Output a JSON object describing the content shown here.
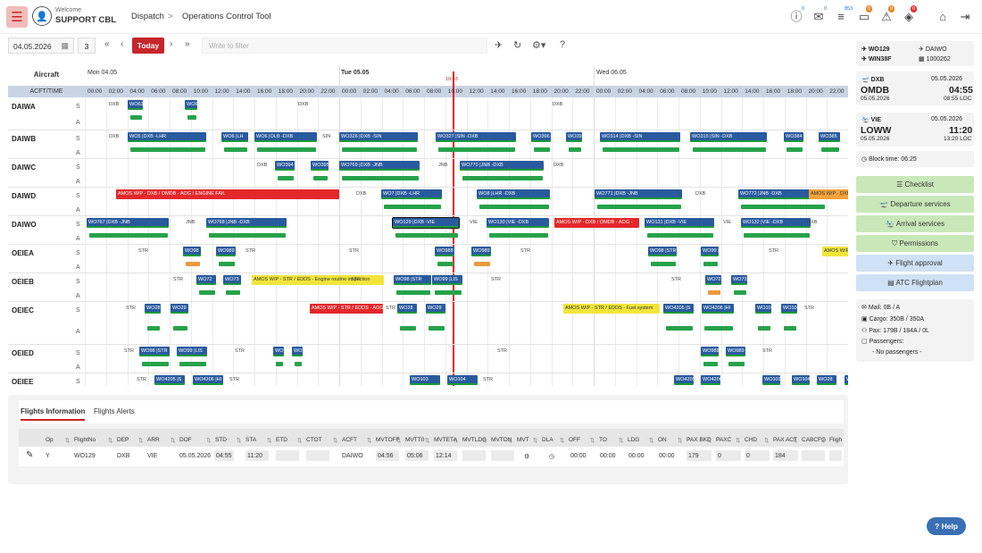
{
  "header": {
    "welcome": "Welcome",
    "user": "SUPPORT CBL",
    "crumb1": "Dispatch",
    "sep": ">",
    "crumb2": "Operations Control Tool",
    "badges": [
      "0",
      "0",
      "853",
      "0",
      "0",
      "0"
    ]
  },
  "toolbar": {
    "date": "04.05.2026",
    "days": "3",
    "today": "Today",
    "filter_placeholder": "Write to filter"
  },
  "gantt": {
    "aircraft_label": "Aircraft",
    "acft_time": "ACFT/TIME",
    "days": [
      "Mon 04.05",
      "Tue 05.05",
      "Wed 06.05"
    ],
    "hours": [
      "00:00",
      "02:00",
      "04:00",
      "06:00",
      "08:00",
      "10:00",
      "12:00",
      "14:00",
      "16:00",
      "18:00",
      "20:00",
      "22:00",
      "00:00",
      "02:00",
      "04:00",
      "06:00",
      "08:00",
      "10:00",
      "12:00",
      "14:00",
      "16:00",
      "18:00",
      "20:00",
      "22:00",
      "00:00",
      "02:00",
      "04:00",
      "06:00",
      "08:00",
      "10:00",
      "12:00",
      "14:00",
      "16:00",
      "18:00",
      "20:00",
      "22:00"
    ],
    "now": "10:43",
    "aircraft": [
      "DAIWA",
      "DAIWB",
      "DAIWC",
      "DAIWD",
      "DAIWO",
      "OEIEA",
      "OEIEB",
      "OEIEC",
      "OEIED",
      "OEIEE"
    ],
    "s": "S",
    "a": "A",
    "bars": [
      {
        "t": "WO63",
        "c": "blue"
      },
      {
        "t": "WO63",
        "c": "blue"
      },
      {
        "t": "WO5 |DXB -LHR",
        "c": "blue"
      },
      {
        "t": "WO6 |LH",
        "c": "blue"
      },
      {
        "t": "WO6 |OLB -DXB",
        "c": "blue"
      },
      {
        "t": "WO326 |DXB -SIN",
        "c": "blue"
      },
      {
        "t": "WO327 |SIN -DXB",
        "c": "blue"
      },
      {
        "t": "WO396",
        "c": "blue"
      },
      {
        "t": "WO397",
        "c": "blue"
      },
      {
        "t": "WO314 |DXB -SIN",
        "c": "blue"
      },
      {
        "t": "WO315 |SIN -DXB",
        "c": "blue"
      },
      {
        "t": "WO384",
        "c": "blue"
      },
      {
        "t": "WO385",
        "c": "blue"
      },
      {
        "t": "WO394",
        "c": "blue"
      },
      {
        "t": "WO395",
        "c": "blue"
      },
      {
        "t": "WO769 |DXB -JNB",
        "c": "blue"
      },
      {
        "t": "WO770 |JNB -DXB",
        "c": "blue"
      },
      {
        "t": "AMOS W/P - DXB / OMDB - AOG / ENGINE FAIL",
        "c": "red"
      },
      {
        "t": "WO7 |DXB -LHR",
        "c": "blue"
      },
      {
        "t": "WO8 |LHR -DXB",
        "c": "blue"
      },
      {
        "t": "WO771 |DXB -JNB",
        "c": "blue"
      },
      {
        "t": "WO772 |JNB -DXB",
        "c": "blue"
      },
      {
        "t": "AMOS W/P - DXB",
        "c": "orange"
      },
      {
        "t": "WO767 |DXB -JNB",
        "c": "blue"
      },
      {
        "t": "WO768 |JNB -DXB",
        "c": "blue"
      },
      {
        "t": "WO129 |DXB -VIE",
        "c": "blue"
      },
      {
        "t": "WO130 |VIE -DXB",
        "c": "blue"
      },
      {
        "t": "AMOS W/P - DXB / OMDB - AOG -",
        "c": "red"
      },
      {
        "t": "WO131 |DXB -VIE",
        "c": "blue"
      },
      {
        "t": "WO132 |VIE -DXB",
        "c": "blue"
      },
      {
        "t": "WO98",
        "c": "blue"
      },
      {
        "t": "WO989",
        "c": "blue"
      },
      {
        "t": "WO988",
        "c": "blue"
      },
      {
        "t": "WO989",
        "c": "blue"
      },
      {
        "t": "WO98 |STR",
        "c": "blue"
      },
      {
        "t": "WO99 |LIS",
        "c": "blue"
      },
      {
        "t": "AMOS W/P",
        "c": "yellow"
      },
      {
        "t": "WO72",
        "c": "blue"
      },
      {
        "t": "WO73",
        "c": "blue"
      },
      {
        "t": "AMOS W/P - STR / EDDS - Engine routine inspection",
        "c": "yellow"
      },
      {
        "t": "WO98 |STR",
        "c": "blue"
      },
      {
        "t": "WO99 |LIS",
        "c": "blue"
      },
      {
        "t": "WO72",
        "c": "blue"
      },
      {
        "t": "WO73",
        "c": "blue"
      },
      {
        "t": "WO28",
        "c": "blue"
      },
      {
        "t": "WO29",
        "c": "blue"
      },
      {
        "t": "AMOS W/P - STR / EDDS - AOG -",
        "c": "red"
      },
      {
        "t": "WO28",
        "c": "blue"
      },
      {
        "t": "WO29",
        "c": "blue"
      },
      {
        "t": "AMOS W/P - STR / EDDS - Fuel system",
        "c": "yellow"
      },
      {
        "t": "WO4205 |S",
        "c": "blue"
      },
      {
        "t": "WO4206 |HI",
        "c": "blue"
      },
      {
        "t": "WO103",
        "c": "blue"
      },
      {
        "t": "WO104",
        "c": "blue"
      },
      {
        "t": "WO98 |STR",
        "c": "blue"
      },
      {
        "t": "WO99 |LIS",
        "c": "blue"
      },
      {
        "t": "WO72",
        "c": "blue"
      },
      {
        "t": "WO73",
        "c": "blue"
      },
      {
        "t": "WO988",
        "c": "blue"
      },
      {
        "t": "WO989",
        "c": "blue"
      },
      {
        "t": "WO4205 |S",
        "c": "blue"
      },
      {
        "t": "WO4206 |HI",
        "c": "blue"
      },
      {
        "t": "WO103",
        "c": "blue"
      },
      {
        "t": "WO104",
        "c": "blue"
      },
      {
        "t": "WO4205 |S",
        "c": "blue"
      },
      {
        "t": "WO4206 |H",
        "c": "blue"
      },
      {
        "t": "WO103",
        "c": "blue"
      },
      {
        "t": "WO104",
        "c": "blue"
      },
      {
        "t": "WO28",
        "c": "blue"
      },
      {
        "t": "WO29",
        "c": "blue"
      },
      {
        "t": "AMOS W/P",
        "c": "red"
      }
    ],
    "stations": [
      "DXB",
      "LHR",
      "DXB",
      "SIN",
      "DXB",
      "JNB",
      "DXB",
      "STR",
      "VIE"
    ]
  },
  "sidebar": {
    "flight": "WO129",
    "reg": "WIN38F",
    "aircraft": "DAIWO",
    "msn": "1000262",
    "dep_code": "DXB",
    "dep_icao": "OMDB",
    "dep_date": "05.05.2026",
    "dep_date2": "05.05.2026",
    "dep_time": "04:55",
    "dep_loc": "08:55 LOC",
    "arr_code": "VIE",
    "arr_icao": "LOWW",
    "arr_date": "05.05.2026",
    "arr_date2": "05.05.2026",
    "arr_time": "11:20",
    "arr_loc": "13:20 LOC",
    "block": "Block time: 06:25",
    "buttons": [
      "Checklist",
      "Departure services",
      "Arrival services",
      "Permissions",
      "Flight approval",
      "ATC Flightplan"
    ],
    "mail": "Mail: 0B / A",
    "cargo": "Cargo: 350B / 350A",
    "pax": "Pax: 179B / 184A / 0L",
    "passengers": "Passengers:",
    "no_pax": "- No passengers -"
  },
  "bottom": {
    "tabs": [
      "Flights Information",
      "Flights Alerts"
    ],
    "columns": [
      "Op",
      "FlightNo",
      "DEP",
      "ARR",
      "DOF",
      "STD",
      "STA",
      "ETD",
      "CTOT",
      "ACFT",
      "MVTOFF",
      "MVTT0",
      "MVTETA",
      "MVTLDG",
      "MVTON",
      "MVT",
      "DLA",
      "OFF",
      "TO",
      "LDG",
      "ON",
      "PAX BKD",
      "PAXC",
      "CHD",
      "PAX ACT",
      "CABCFG",
      "Fligh"
    ],
    "row": {
      "op": "Y",
      "flight": "WO129",
      "dep": "DXB",
      "arr": "VIE",
      "dof": "05.05.2026",
      "std": "04:55",
      "sta": "11:20",
      "acft": "DAIWO",
      "mvtoff": "04:56",
      "mvtt0": "05:06",
      "mvteta": "12:14",
      "off": "00:00",
      "to": "00:00",
      "ldg": "00:00",
      "on": "00:00",
      "paxbkd": "179",
      "paxc": "0",
      "chd": "0",
      "paxact": "184"
    }
  },
  "help": "Help"
}
